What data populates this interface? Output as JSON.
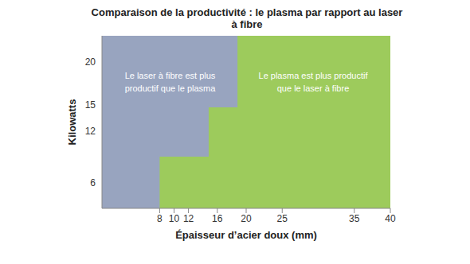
{
  "chart_data": {
    "type": "step",
    "title": "Comparaison de la productivité : le plasma par rapport au laser à fibre",
    "x_label": "Épaisseur d’acier doux (mm)",
    "y_label": "Kilowatts",
    "x": [
      0,
      8,
      14.8,
      18.8,
      40
    ],
    "series": [
      {
        "color": "#9dcb5c",
        "values": [
          3,
          9,
          14.7,
          23,
          23
        ]
      }
    ],
    "color": "#98a4bf",
    "xlim": [
      0,
      40
    ],
    "xticks": [
      8,
      10,
      12,
      16,
      20,
      25,
      35,
      40
    ],
    "ylim": [
      3,
      23
    ],
    "yticks": [
      6,
      12,
      15,
      20
    ],
    "grid": false,
    "annotations": [
      [
        "Le laser à fibre est plus",
        "productif que le plasma"
      ],
      [
        "Le plasma est plus productif",
        "que le laser à fibre"
      ]
    ]
  }
}
